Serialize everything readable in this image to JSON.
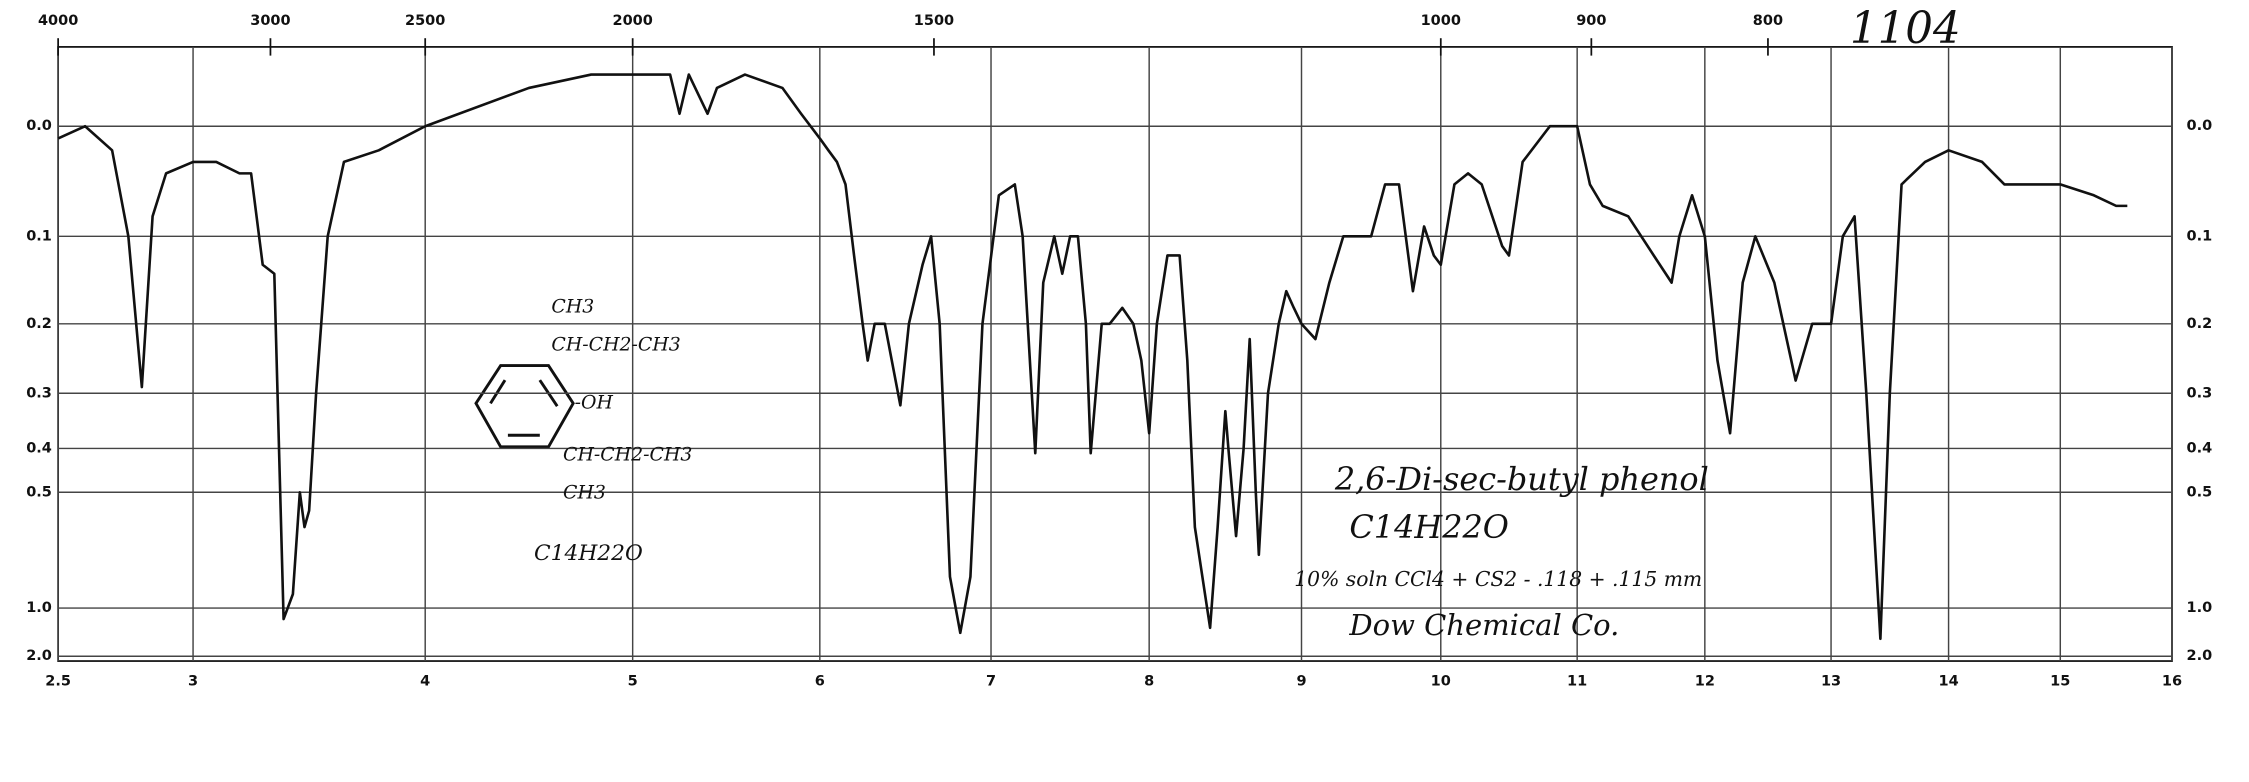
{
  "chart_data": {
    "type": "line",
    "color": "#111111",
    "grid": true,
    "yscale": "absorbance",
    "xlim": [
      2.5,
      16
    ],
    "ylim": [
      -0.06,
      3
    ],
    "xticks": [
      2.5,
      3,
      4,
      5,
      6,
      7,
      8,
      9,
      10,
      11,
      12,
      13,
      14,
      15,
      16
    ],
    "x2ticks": [
      4000,
      3000,
      2500,
      2000,
      1500,
      1000,
      900,
      800
    ],
    "yticks": [
      {
        "value": 0,
        "label": "0.0"
      },
      0.1,
      0.2,
      0.3,
      0.4,
      0.5,
      {
        "value": 1,
        "label": "1.0"
      },
      {
        "value": 2,
        "label": "2.0"
      }
    ],
    "x": [
      2.5,
      2.6,
      2.7,
      2.76,
      2.81,
      2.85,
      2.9,
      3.0,
      3.1,
      3.2,
      3.25,
      3.3,
      3.35,
      3.39,
      3.43,
      3.46,
      3.48,
      3.5,
      3.53,
      3.58,
      3.65,
      3.8,
      4.0,
      4.5,
      4.8,
      5.0,
      5.2,
      5.25,
      5.3,
      5.4,
      5.45,
      5.6,
      5.8,
      5.9,
      6.0,
      6.05,
      6.1,
      6.15,
      6.2,
      6.25,
      6.28,
      6.32,
      6.38,
      6.42,
      6.47,
      6.52,
      6.6,
      6.65,
      6.7,
      6.76,
      6.82,
      6.88,
      6.95,
      7.05,
      7.15,
      7.2,
      7.28,
      7.33,
      7.4,
      7.45,
      7.5,
      7.55,
      7.6,
      7.63,
      7.7,
      7.75,
      7.83,
      7.9,
      7.95,
      8.0,
      8.05,
      8.12,
      8.2,
      8.25,
      8.3,
      8.4,
      8.45,
      8.5,
      8.52,
      8.57,
      8.62,
      8.66,
      8.7,
      8.72,
      8.78,
      8.85,
      8.9,
      8.95,
      9.0,
      9.1,
      9.2,
      9.3,
      9.5,
      9.6,
      9.7,
      9.8,
      9.88,
      9.95,
      10.0,
      10.1,
      10.2,
      10.3,
      10.45,
      10.5,
      10.6,
      10.8,
      11.0,
      11.1,
      11.2,
      11.4,
      11.6,
      11.74,
      11.8,
      11.9,
      12.0,
      12.1,
      12.2,
      12.3,
      12.4,
      12.55,
      12.72,
      12.85,
      13.0,
      13.1,
      13.2,
      13.3,
      13.42,
      13.5,
      13.6,
      13.8,
      14.0,
      14.3,
      14.5,
      14.7,
      15.0,
      15.3,
      15.5,
      15.6
    ],
    "values": [
      0.01,
      0.0,
      0.02,
      0.1,
      0.29,
      0.08,
      0.04,
      0.03,
      0.03,
      0.04,
      0.04,
      0.13,
      0.14,
      1.1,
      0.9,
      0.5,
      0.6,
      0.55,
      0.3,
      0.1,
      0.03,
      0.02,
      0.0,
      -0.03,
      -0.04,
      -0.04,
      -0.04,
      -0.01,
      -0.04,
      -0.01,
      -0.03,
      -0.04,
      -0.03,
      -0.01,
      0.01,
      0.02,
      0.03,
      0.05,
      0.12,
      0.2,
      0.25,
      0.2,
      0.2,
      0.25,
      0.32,
      0.2,
      0.13,
      0.1,
      0.2,
      0.8,
      1.27,
      0.8,
      0.2,
      0.06,
      0.05,
      0.1,
      0.41,
      0.15,
      0.1,
      0.14,
      0.1,
      0.1,
      0.2,
      0.41,
      0.2,
      0.2,
      0.18,
      0.2,
      0.25,
      0.37,
      0.2,
      0.12,
      0.12,
      0.25,
      0.6,
      1.2,
      0.6,
      0.33,
      0.4,
      0.63,
      0.4,
      0.22,
      0.5,
      0.7,
      0.3,
      0.2,
      0.16,
      0.18,
      0.2,
      0.22,
      0.15,
      0.1,
      0.1,
      0.05,
      0.05,
      0.16,
      0.09,
      0.12,
      0.13,
      0.05,
      0.04,
      0.05,
      0.11,
      0.12,
      0.03,
      0.0,
      0.0,
      0.05,
      0.07,
      0.08,
      0.12,
      0.15,
      0.1,
      0.06,
      0.1,
      0.25,
      0.37,
      0.15,
      0.1,
      0.15,
      0.28,
      0.2,
      0.2,
      0.1,
      0.08,
      0.3,
      1.37,
      0.3,
      0.05,
      0.03,
      0.02,
      0.03,
      0.05,
      0.05,
      0.05,
      0.06,
      0.07,
      0.07
    ],
    "annotations": [
      "1104",
      "2,6-Di-sec-butyl phenol",
      "C14H22O",
      "10% soln CCl4 + CS2 - .118 + .115 mm",
      "Dow Chemical Co.",
      "CH3",
      "CH-CH2-CH3",
      "-OH",
      "CH-CH2-CH3",
      "CH3",
      "C14H22O"
    ]
  }
}
